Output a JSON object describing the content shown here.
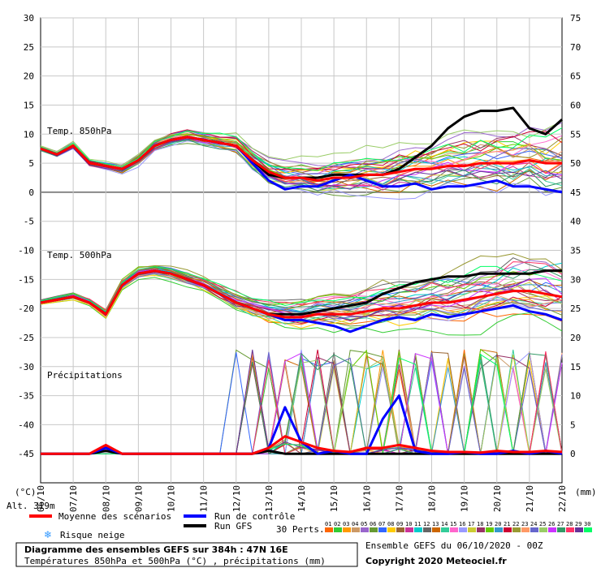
{
  "chart_data": {
    "type": "line",
    "title": "Diagramme des ensembles GEFS sur 384h : 47N 16E",
    "subtitle": "Températures 850hPa et 500hPa (°C) , précipitations (mm)",
    "run_label": "Ensemble GEFS du 06/10/2020 - 00Z",
    "copyright": "Copyright 2020 Meteociel.fr",
    "altitude_label": "Alt. 319m",
    "left_unit": "(°C)",
    "right_unit": "(mm)",
    "left_axis": {
      "ylim": [
        -50,
        30
      ],
      "ticks": [
        30,
        25,
        20,
        15,
        10,
        5,
        0,
        -5,
        -10,
        -15,
        -20,
        -25,
        -30,
        -35,
        -40,
        -45
      ]
    },
    "right_axis": {
      "ylim": [
        -5,
        75
      ],
      "ticks": [
        75,
        70,
        65,
        60,
        55,
        50,
        45,
        40,
        35,
        30,
        25,
        20,
        15,
        10,
        5,
        0
      ]
    },
    "x_ticks": [
      "06/10",
      "07/10",
      "08/10",
      "09/10",
      "10/10",
      "11/10",
      "12/10",
      "13/10",
      "14/10",
      "15/10",
      "16/10",
      "17/10",
      "18/10",
      "19/10",
      "20/10",
      "21/10",
      "22/10"
    ],
    "grid": true,
    "panels": [
      {
        "label": "Temp. 850hPa",
        "unit": "°C"
      },
      {
        "label": "Temp. 500hPa",
        "unit": "°C"
      },
      {
        "label": "Précipitations",
        "unit": "mm"
      }
    ],
    "time_hours": [
      0,
      12,
      24,
      36,
      48,
      60,
      72,
      84,
      96,
      108,
      120,
      132,
      144,
      156,
      168,
      180,
      192,
      204,
      216,
      228,
      240,
      252,
      264,
      276,
      288,
      300,
      312,
      324,
      336,
      348,
      360,
      372,
      384
    ],
    "series": [
      {
        "name": "Moyenne des scénarios",
        "color": "#ff0000",
        "width": 3,
        "t850": [
          7.5,
          6.5,
          8,
          5,
          4.5,
          4,
          5.5,
          8,
          9,
          9.5,
          9,
          8.5,
          8,
          5.5,
          3.5,
          2.5,
          2.5,
          2,
          2.5,
          2.5,
          3,
          3,
          3.5,
          4,
          4,
          4.5,
          4.5,
          5,
          5,
          5,
          5.5,
          5,
          5
        ],
        "t500": [
          -19,
          -18.5,
          -18,
          -19,
          -21,
          -16,
          -14,
          -13.5,
          -14,
          -15,
          -16,
          -17.5,
          -19,
          -20,
          -21,
          -21.5,
          -21.5,
          -21,
          -21,
          -21,
          -20.5,
          -20,
          -20,
          -19.5,
          -19,
          -19,
          -18.5,
          -18,
          -17.5,
          -17,
          -17,
          -17.5,
          -18
        ],
        "precip": [
          0,
          0,
          0,
          0,
          1.5,
          0,
          0,
          0,
          0,
          0,
          0,
          0,
          0,
          0,
          1,
          3,
          2,
          1,
          0.5,
          0.3,
          1,
          1,
          1.5,
          1,
          0.5,
          0.3,
          0.3,
          0.2,
          0.5,
          0.3,
          0.3,
          0.5,
          0.3
        ]
      },
      {
        "name": "Run de contrôle",
        "color": "#0000ff",
        "width": 3,
        "t850": [
          7.5,
          6.5,
          8,
          5,
          4.5,
          4,
          5.5,
          8,
          9,
          9.5,
          9,
          8.5,
          8,
          5,
          2,
          0.5,
          1,
          1,
          2,
          3,
          2,
          1,
          1,
          1.5,
          0.5,
          1,
          1,
          1.5,
          2,
          1,
          1,
          0.5,
          0
        ],
        "t500": [
          -19,
          -18.5,
          -18,
          -19,
          -21,
          -16,
          -14,
          -13.5,
          -14,
          -15,
          -16,
          -17.5,
          -19,
          -20,
          -21,
          -22,
          -22,
          -22.5,
          -23,
          -24,
          -23,
          -22,
          -21.5,
          -22,
          -21,
          -21.5,
          -21,
          -20.5,
          -20,
          -19.5,
          -20.5,
          -21,
          -22
        ],
        "precip": [
          0,
          0,
          0,
          0,
          1,
          0,
          0,
          0,
          0,
          0,
          0,
          0,
          0,
          0,
          1,
          8,
          2,
          0,
          0.5,
          0,
          0,
          6,
          10,
          0.5,
          0,
          0,
          0.3,
          0,
          0,
          0.5,
          0,
          0.5,
          0
        ]
      },
      {
        "name": "Run GFS",
        "color": "#000000",
        "width": 3,
        "t850": [
          7.5,
          6.5,
          8,
          5,
          4.5,
          4,
          5.5,
          8,
          9,
          9.5,
          9,
          8.5,
          8,
          5.5,
          3,
          2.5,
          2.5,
          2.5,
          3,
          3,
          3,
          3,
          4,
          6,
          8,
          11,
          13,
          14,
          14,
          14.5,
          11,
          10,
          12.5
        ],
        "t500": [
          -19,
          -18.5,
          -18,
          -19,
          -21,
          -16,
          -14,
          -13.5,
          -14,
          -15,
          -16,
          -17.5,
          -19,
          -20,
          -21,
          -21,
          -21,
          -20.5,
          -20,
          -19.5,
          -19,
          -17.5,
          -16.5,
          -15.5,
          -15,
          -14.5,
          -14.5,
          -14,
          -14,
          -14,
          -14,
          -13.5,
          -13.5
        ],
        "precip": [
          0,
          0,
          0,
          0,
          0.5,
          0,
          0,
          0,
          0,
          0,
          0,
          0,
          0,
          0,
          0.5,
          0,
          0,
          0,
          0,
          0,
          0,
          0,
          0,
          0,
          0,
          0,
          0,
          0,
          0,
          0,
          0,
          0,
          0
        ]
      }
    ],
    "legend": {
      "mean_label": "Moyenne des scénarios",
      "snow_label": "Risque neige",
      "control_label": "Run de contrôle",
      "gfs_label": "Run GFS",
      "perts_label": "30 Perts.",
      "perturbation_numbers": [
        "01",
        "02",
        "03",
        "04",
        "05",
        "06",
        "07",
        "08",
        "09",
        "10",
        "11",
        "12",
        "13",
        "14",
        "15",
        "16",
        "17",
        "18",
        "19",
        "20",
        "21",
        "22",
        "23",
        "24",
        "25",
        "26",
        "27",
        "28",
        "29",
        "30"
      ],
      "perturbation_colors": [
        "#ff6600",
        "#33cc33",
        "#ff9900",
        "#cc9966",
        "#9966cc",
        "#669933",
        "#3366ff",
        "#ffcc00",
        "#996633",
        "#cc3399",
        "#00cccc",
        "#666666",
        "#cc6600",
        "#33cc99",
        "#ff66cc",
        "#9999ff",
        "#cccc33",
        "#993366",
        "#66cc00",
        "#3399cc",
        "#cc0033",
        "#999933",
        "#ff9966",
        "#6666cc",
        "#99cc66",
        "#cc33ff",
        "#339966",
        "#ff3366",
        "#663399",
        "#00ff66"
      ]
    }
  }
}
